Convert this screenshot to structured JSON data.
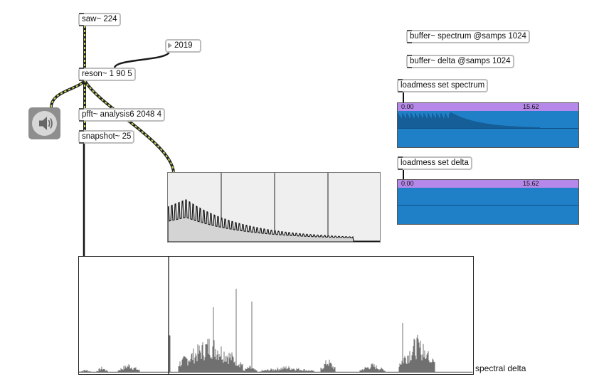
{
  "objects": {
    "saw": "saw~ 224",
    "reson": "reson~ 1 90 5",
    "pfft": "pfft~ analysis6 2048 4",
    "snapshot": "snapshot~ 25",
    "buffer_spectrum": "buffer~ spectrum @samps 1024",
    "buffer_delta": "buffer~ delta @samps 1024",
    "loadmess_spectrum": "loadmess set spectrum",
    "loadmess_delta": "loadmess set delta"
  },
  "number_box": {
    "value": "2019"
  },
  "waveform_spectrum": {
    "start": "0.00",
    "end": "15.62"
  },
  "waveform_delta": {
    "start": "0.00",
    "end": "15.62"
  },
  "multislider": {
    "label": "spectral delta"
  },
  "colors": {
    "signal_patchcord": "#c8d85a",
    "buffer_waveform": "#1f80c8",
    "ruler": "#b688ea"
  },
  "icons": {
    "dac": "speaker-icon"
  }
}
